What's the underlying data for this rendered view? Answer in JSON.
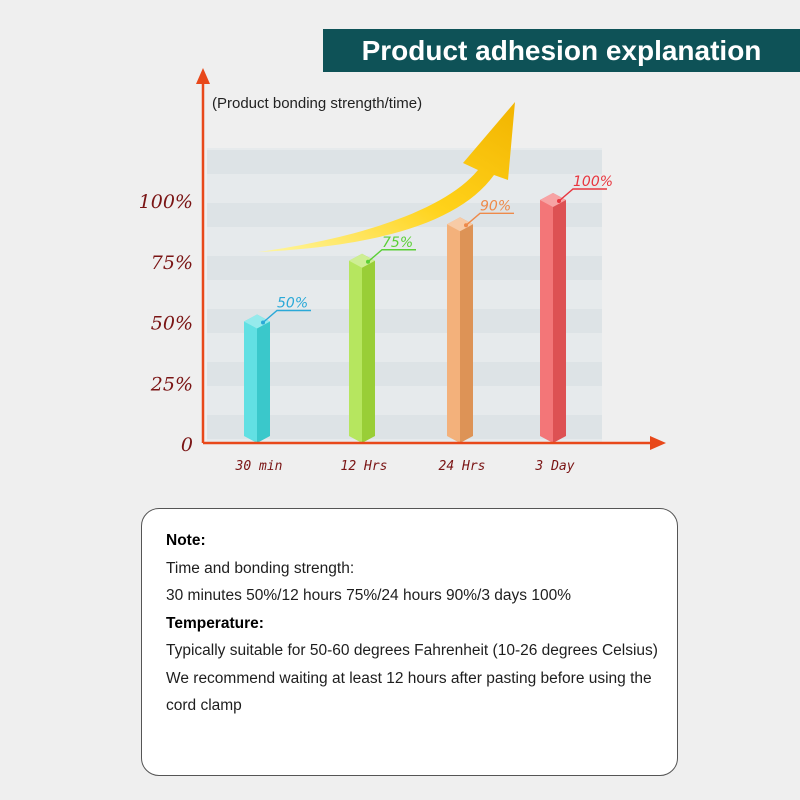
{
  "title": "Product adhesion explanation",
  "chart_data": {
    "type": "bar",
    "subtitle": "(Product bonding strength/time)",
    "categories": [
      "30 min",
      "12 Hrs",
      "24 Hrs",
      "3 Day"
    ],
    "values": [
      50,
      75,
      90,
      100
    ],
    "value_labels": [
      "50%",
      "75%",
      "90%",
      "100%"
    ],
    "bar_colors": [
      "#3fd9dd",
      "#a6e03c",
      "#f0a05e",
      "#f0585a"
    ],
    "label_colors": [
      "#2aa9d8",
      "#5bcf36",
      "#ee8a4a",
      "#e8363f"
    ],
    "yticks": [
      {
        "value": 0,
        "label": "0"
      },
      {
        "value": 25,
        "label": "25%"
      },
      {
        "value": 50,
        "label": "50%"
      },
      {
        "value": 75,
        "label": "75%"
      },
      {
        "value": 100,
        "label": "100%"
      }
    ],
    "axis_color": "#e8481a",
    "tick_label_color": "#7a1414",
    "arrow_colors": [
      "#fff7a0",
      "#ffd21a",
      "#f2b400"
    ]
  },
  "note": {
    "heading": "Note:",
    "line1": "Time and bonding strength:",
    "line2": "30 minutes 50%/12 hours 75%/24 hours 90%/3 days 100%",
    "heading2": "Temperature:",
    "line3": "Typically suitable for 50-60 degrees Fahrenheit (10-26 degrees Celsius)",
    "line4": "We recommend waiting at least 12 hours after pasting before using the cord clamp"
  }
}
